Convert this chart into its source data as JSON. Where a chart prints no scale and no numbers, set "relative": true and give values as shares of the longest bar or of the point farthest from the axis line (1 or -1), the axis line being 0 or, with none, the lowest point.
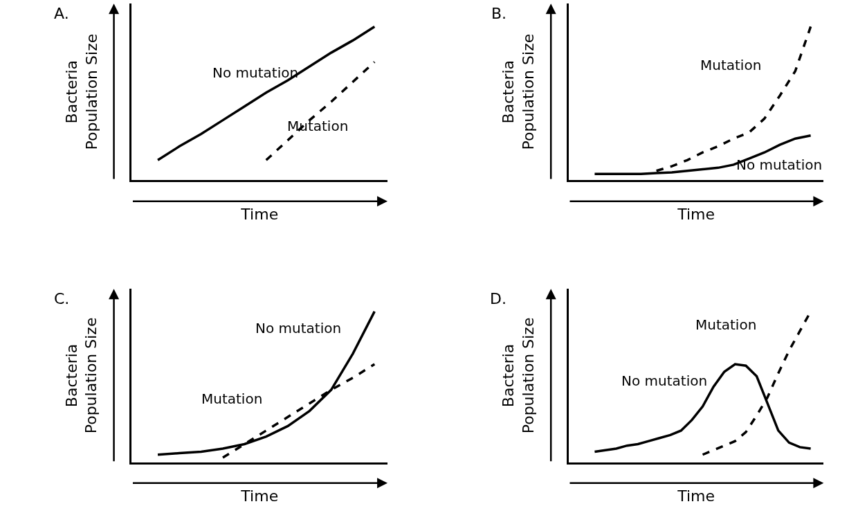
{
  "chart_data": [
    {
      "type": "line",
      "title": "A.",
      "xlabel": "Time",
      "ylabel": "Bacteria\nPopulation Size",
      "relative": true,
      "categories": [
        null,
        null,
        null,
        null,
        null,
        null,
        null,
        null,
        null,
        null,
        null
      ],
      "series": [
        {
          "name": "No mutation",
          "color": "#000000",
          "line_style": "solid",
          "values": [
            0.13,
            0.22,
            0.3,
            0.39,
            0.48,
            0.57,
            0.65,
            0.74,
            0.83,
            0.91,
            1.0
          ]
        },
        {
          "name": "Mutation",
          "color": "#000000",
          "line_style": "dashed",
          "values": [
            null,
            null,
            null,
            null,
            null,
            0.13,
            0.26,
            0.39,
            0.51,
            0.64,
            0.77
          ]
        }
      ]
    },
    {
      "type": "line",
      "title": "B.",
      "xlabel": "Time",
      "ylabel": "Bacteria\nPopulation Size",
      "relative": true,
      "categories": [
        null,
        null,
        null,
        null,
        null,
        null,
        null,
        null,
        null,
        null,
        null,
        null,
        null,
        null,
        null
      ],
      "series": [
        {
          "name": "No mutation",
          "color": "#000000",
          "line_style": "solid",
          "values": [
            0.04,
            0.04,
            0.04,
            0.04,
            0.045,
            0.05,
            0.06,
            0.07,
            0.08,
            0.1,
            0.14,
            0.18,
            0.23,
            0.27,
            0.29
          ]
        },
        {
          "name": "Mutation",
          "color": "#000000",
          "line_style": "dashed",
          "values": [
            null,
            null,
            null,
            null,
            0.06,
            0.09,
            0.13,
            0.18,
            0.22,
            0.27,
            0.31,
            0.4,
            0.55,
            0.71,
            1.0
          ]
        }
      ]
    },
    {
      "type": "line",
      "title": "C.",
      "xlabel": "Time",
      "ylabel": "Bacteria\nPopulation Size",
      "relative": true,
      "categories": [
        null,
        null,
        null,
        null,
        null,
        null,
        null,
        null,
        null,
        null,
        null
      ],
      "series": [
        {
          "name": "No mutation",
          "color": "#000000",
          "line_style": "solid",
          "values": [
            0.05,
            0.06,
            0.07,
            0.09,
            0.12,
            0.17,
            0.24,
            0.34,
            0.48,
            0.72,
            1.0
          ]
        },
        {
          "name": "Mutation",
          "color": "#000000",
          "line_style": "dashed",
          "values": [
            null,
            null,
            null,
            0.03,
            0.12,
            0.21,
            0.3,
            0.39,
            0.48,
            0.56,
            0.65
          ]
        }
      ]
    },
    {
      "type": "line",
      "title": "D.",
      "xlabel": "Time",
      "ylabel": "Bacteria\nPopulation Size",
      "relative": true,
      "categories": [
        null,
        null,
        null,
        null,
        null,
        null,
        null,
        null,
        null,
        null,
        null,
        null,
        null,
        null,
        null,
        null,
        null,
        null,
        null,
        null,
        null
      ],
      "series": [
        {
          "name": "No mutation",
          "color": "#000000",
          "line_style": "solid",
          "values": [
            0.07,
            0.08,
            0.09,
            0.11,
            0.12,
            0.14,
            0.16,
            0.18,
            0.21,
            0.28,
            0.37,
            0.5,
            0.6,
            0.65,
            0.64,
            0.57,
            0.39,
            0.21,
            0.13,
            0.1,
            0.09
          ]
        },
        {
          "name": "Mutation",
          "color": "#000000",
          "line_style": "dashed",
          "values": [
            null,
            null,
            null,
            null,
            null,
            null,
            null,
            null,
            null,
            null,
            0.05,
            0.08,
            0.11,
            0.14,
            0.2,
            0.31,
            0.43,
            0.59,
            0.74,
            0.87,
            1.0
          ]
        }
      ]
    }
  ]
}
